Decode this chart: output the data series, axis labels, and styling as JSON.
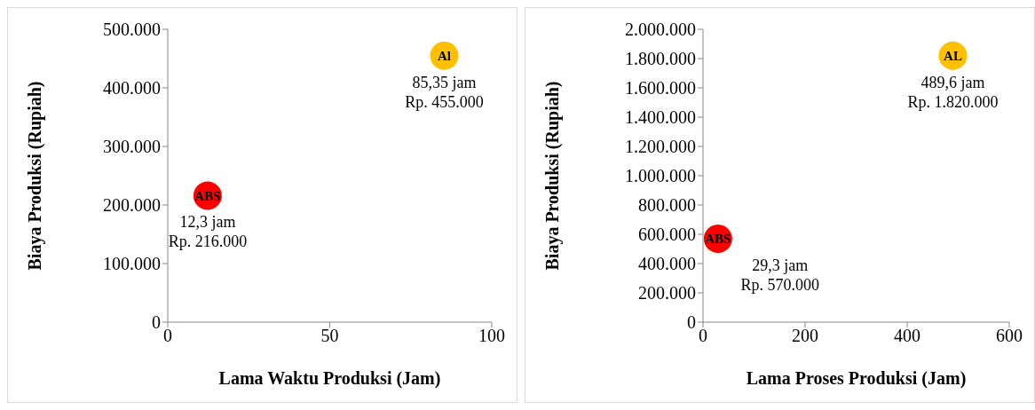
{
  "chart_data": [
    {
      "type": "scatter",
      "xlabel": "Lama Waktu Produksi (Jam)",
      "ylabel": "Biaya Produksi (Rupiah)",
      "xlim": [
        0,
        100
      ],
      "xticks": [
        0,
        50,
        100
      ],
      "ylim": [
        0,
        500000
      ],
      "yticks": [
        {
          "value": 0,
          "label": "0"
        },
        {
          "value": 100000,
          "label": "100.000"
        },
        {
          "value": 200000,
          "label": "200.000"
        },
        {
          "value": 300000,
          "label": "300.000"
        },
        {
          "value": 400000,
          "label": "400.000"
        },
        {
          "value": 500000,
          "label": "500.000"
        }
      ],
      "grid": false,
      "legend": false,
      "marker": "circle",
      "series": [
        {
          "name": "ABS",
          "color": "#ff0000",
          "x": [
            12.3
          ],
          "values": [
            216000
          ]
        },
        {
          "name": "Al",
          "color": "#ffc000",
          "x": [
            85.35
          ],
          "values": [
            455000
          ]
        }
      ],
      "annotations": [
        {
          "text": "12,3 jam",
          "x": 12.3,
          "y": 216000
        },
        {
          "text": "Rp. 216.000",
          "x": 12.3,
          "y": 216000
        },
        {
          "text": "85,35 jam",
          "x": 85.35,
          "y": 455000
        },
        {
          "text": "Rp. 455.000",
          "x": 85.35,
          "y": 455000
        }
      ]
    },
    {
      "type": "scatter",
      "xlabel": "Lama Proses Produksi (Jam)",
      "ylabel": "Biaya Produksi (Rupiah)",
      "xlim": [
        0,
        600
      ],
      "xticks": [
        0,
        200,
        400,
        600
      ],
      "ylim": [
        0,
        2000000
      ],
      "yticks": [
        {
          "value": 0,
          "label": "0"
        },
        {
          "value": 200000,
          "label": "200.000"
        },
        {
          "value": 400000,
          "label": "400.000"
        },
        {
          "value": 600000,
          "label": "600.000"
        },
        {
          "value": 800000,
          "label": "800.000"
        },
        {
          "value": 1000000,
          "label": "1.000.000"
        },
        {
          "value": 1200000,
          "label": "1.200.000"
        },
        {
          "value": 1400000,
          "label": "1.400.000"
        },
        {
          "value": 1600000,
          "label": "1.600.000"
        },
        {
          "value": 1800000,
          "label": "1.800.000"
        },
        {
          "value": 2000000,
          "label": "2.000.000"
        }
      ],
      "grid": false,
      "legend": false,
      "marker": "circle",
      "series": [
        {
          "name": "ABS",
          "color": "#ff0000",
          "x": [
            29.3
          ],
          "values": [
            570000
          ]
        },
        {
          "name": "AL",
          "color": "#ffc000",
          "x": [
            489.6
          ],
          "values": [
            1820000
          ]
        }
      ],
      "annotations": [
        {
          "text": "29,3 jam",
          "x": 29.3,
          "y": 570000
        },
        {
          "text": "Rp. 570.000",
          "x": 29.3,
          "y": 570000
        },
        {
          "text": "489,6 jam",
          "x": 489.6,
          "y": 1820000
        },
        {
          "text": "Rp. 1.820.000",
          "x": 489.6,
          "y": 1820000
        }
      ]
    }
  ]
}
